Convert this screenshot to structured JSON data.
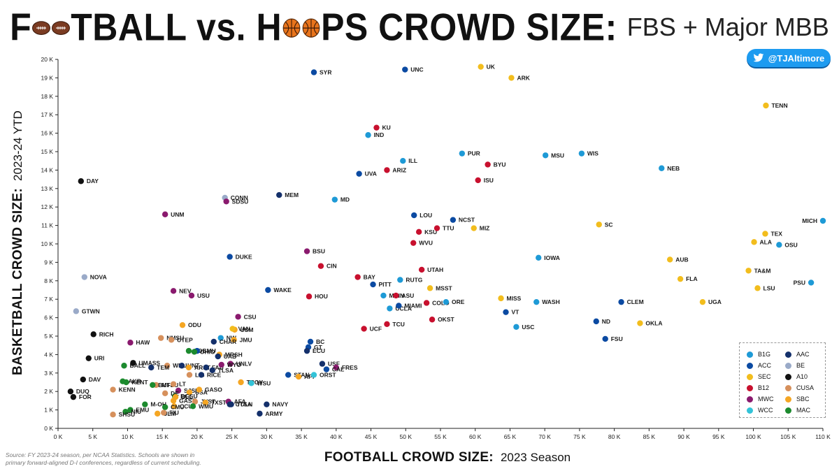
{
  "header": {
    "title_part1": "F",
    "title_part2": "TBALL vs. H",
    "title_part3": "PS CROWD SIZE:",
    "subtitle": "FBS + Major MBB"
  },
  "twitter_handle": "@TJAltimore",
  "source_note": "Source:  FY 2023-24 season, per NCAA Statistics.  Schools are shown in primary forward-aligned D-I conferences, regardless of current scheduling.",
  "chart_data": {
    "type": "scatter",
    "title": "FOOTBALL vs. HOOPS CROWD SIZE: FBS + Major MBB",
    "xlabel_bold": "FOOTBALL CROWD SIZE:",
    "xlabel_regular": "2023 Season",
    "ylabel_bold": "BASKETBALL CROWD SIZE:",
    "ylabel_regular": "2023-24 YTD",
    "xlim": [
      0,
      110000
    ],
    "ylim": [
      0,
      20000
    ],
    "x_ticks": [
      "0 K",
      "5 K",
      "10 K",
      "15 K",
      "20 K",
      "25 K",
      "30 K",
      "35 K",
      "40 K",
      "45 K",
      "50 K",
      "55 K",
      "60 K",
      "65 K",
      "70 K",
      "75 K",
      "80 K",
      "85 K",
      "90 K",
      "95 K",
      "100 K",
      "105 K",
      "110 K"
    ],
    "y_ticks": [
      "0 K",
      "1 K",
      "2 K",
      "3 K",
      "4 K",
      "5 K",
      "6 K",
      "7 K",
      "8 K",
      "9 K",
      "10 K",
      "11 K",
      "12 K",
      "13 K",
      "14 K",
      "15 K",
      "16 K",
      "17 K",
      "18 K",
      "19 K",
      "20 K"
    ],
    "grid": false,
    "legend_position": "bottom-right",
    "conferences": [
      {
        "key": "B1G",
        "color": "#1e9ad6"
      },
      {
        "key": "AAC",
        "color": "#14306b"
      },
      {
        "key": "ACC",
        "color": "#0b4aa2"
      },
      {
        "key": "BE",
        "color": "#9aaac8"
      },
      {
        "key": "SEC",
        "color": "#f2bd1d"
      },
      {
        "key": "A10",
        "color": "#111111"
      },
      {
        "key": "B12",
        "color": "#c8102e"
      },
      {
        "key": "CUSA",
        "color": "#d6905c"
      },
      {
        "key": "MWC",
        "color": "#8a1a6e"
      },
      {
        "key": "SBC",
        "color": "#f5a623"
      },
      {
        "key": "WCC",
        "color": "#33c3d8"
      },
      {
        "key": "MAC",
        "color": "#1c8a2e"
      }
    ],
    "points": [
      {
        "label": "SYR",
        "conf": "ACC",
        "x": 36800,
        "y": 19300
      },
      {
        "label": "UNC",
        "conf": "ACC",
        "x": 49900,
        "y": 19450
      },
      {
        "label": "UK",
        "conf": "SEC",
        "x": 60800,
        "y": 19600
      },
      {
        "label": "ARK",
        "conf": "SEC",
        "x": 65200,
        "y": 19000
      },
      {
        "label": "TENN",
        "conf": "SEC",
        "x": 101800,
        "y": 17500
      },
      {
        "label": "KU",
        "conf": "B12",
        "x": 45800,
        "y": 16300
      },
      {
        "label": "IND",
        "conf": "B1G",
        "x": 44600,
        "y": 15900
      },
      {
        "label": "PUR",
        "conf": "B1G",
        "x": 58100,
        "y": 14900
      },
      {
        "label": "MSU",
        "conf": "B1G",
        "x": 70100,
        "y": 14800
      },
      {
        "label": "WIS",
        "conf": "B1G",
        "x": 75300,
        "y": 14900
      },
      {
        "label": "ILL",
        "conf": "B1G",
        "x": 49600,
        "y": 14500
      },
      {
        "label": "BYU",
        "conf": "B12",
        "x": 61800,
        "y": 14300
      },
      {
        "label": "ARIZ",
        "conf": "B12",
        "x": 47300,
        "y": 14000
      },
      {
        "label": "UVA",
        "conf": "ACC",
        "x": 43300,
        "y": 13800
      },
      {
        "label": "NEB",
        "conf": "B1G",
        "x": 86800,
        "y": 14100
      },
      {
        "label": "ISU",
        "conf": "B12",
        "x": 60400,
        "y": 13450
      },
      {
        "label": "DAY",
        "conf": "A10",
        "x": 3300,
        "y": 13400
      },
      {
        "label": "CONN",
        "conf": "BE",
        "x": 24000,
        "y": 12500
      },
      {
        "label": "SDSU",
        "conf": "MWC",
        "x": 24200,
        "y": 12300
      },
      {
        "label": "MEM",
        "conf": "AAC",
        "x": 31800,
        "y": 12650
      },
      {
        "label": "MD",
        "conf": "B1G",
        "x": 39800,
        "y": 12400
      },
      {
        "label": "UNM",
        "conf": "MWC",
        "x": 15400,
        "y": 11600
      },
      {
        "label": "LOU",
        "conf": "ACC",
        "x": 51200,
        "y": 11550
      },
      {
        "label": "NCST",
        "conf": "ACC",
        "x": 56800,
        "y": 11300
      },
      {
        "label": "MICH",
        "conf": "B1G",
        "x": 110000,
        "y": 11250
      },
      {
        "label": "SC",
        "conf": "SEC",
        "x": 77800,
        "y": 11050
      },
      {
        "label": "KSU",
        "conf": "B12",
        "x": 51900,
        "y": 10650
      },
      {
        "label": "TTU",
        "conf": "B12",
        "x": 54500,
        "y": 10850
      },
      {
        "label": "MIZ",
        "conf": "SEC",
        "x": 59800,
        "y": 10850
      },
      {
        "label": "TEX",
        "conf": "SEC",
        "x": 101700,
        "y": 10550
      },
      {
        "label": "WVU",
        "conf": "B12",
        "x": 51100,
        "y": 10050
      },
      {
        "label": "ALA",
        "conf": "SEC",
        "x": 100100,
        "y": 10100
      },
      {
        "label": "OSU",
        "conf": "B1G",
        "x": 103700,
        "y": 9950
      },
      {
        "label": "BSU",
        "conf": "MWC",
        "x": 35800,
        "y": 9600
      },
      {
        "label": "DUKE",
        "conf": "ACC",
        "x": 24700,
        "y": 9300
      },
      {
        "label": "IOWA",
        "conf": "B1G",
        "x": 69100,
        "y": 9250
      },
      {
        "label": "AUB",
        "conf": "SEC",
        "x": 88000,
        "y": 9150
      },
      {
        "label": "CIN",
        "conf": "B12",
        "x": 37800,
        "y": 8800
      },
      {
        "label": "UTAH",
        "conf": "B12",
        "x": 52300,
        "y": 8600
      },
      {
        "label": "TA&M",
        "conf": "SEC",
        "x": 99300,
        "y": 8550
      },
      {
        "label": "NOVA",
        "conf": "BE",
        "x": 3800,
        "y": 8200
      },
      {
        "label": "BAY",
        "conf": "B12",
        "x": 43100,
        "y": 8200
      },
      {
        "label": "FLA",
        "conf": "SEC",
        "x": 89500,
        "y": 8100
      },
      {
        "label": "RUTG",
        "conf": "B1G",
        "x": 49200,
        "y": 8050
      },
      {
        "label": "PITT",
        "conf": "ACC",
        "x": 45300,
        "y": 7800
      },
      {
        "label": "MSST",
        "conf": "SEC",
        "x": 53500,
        "y": 7600
      },
      {
        "label": "LSU",
        "conf": "SEC",
        "x": 100600,
        "y": 7600
      },
      {
        "label": "PSU",
        "conf": "B1G",
        "x": 108300,
        "y": 7900
      },
      {
        "label": "WAKE",
        "conf": "ACC",
        "x": 30200,
        "y": 7500
      },
      {
        "label": "NEV",
        "conf": "MWC",
        "x": 16600,
        "y": 7450
      },
      {
        "label": "USU",
        "conf": "MWC",
        "x": 19200,
        "y": 7200
      },
      {
        "label": "HOU",
        "conf": "B12",
        "x": 36100,
        "y": 7150
      },
      {
        "label": "MINN",
        "conf": "B1G",
        "x": 46800,
        "y": 7200
      },
      {
        "label": "ASU",
        "conf": "B12",
        "x": 48600,
        "y": 7200
      },
      {
        "label": "COLO",
        "conf": "B12",
        "x": 53000,
        "y": 6800
      },
      {
        "label": "ORE",
        "conf": "B1G",
        "x": 55800,
        "y": 6850
      },
      {
        "label": "MISS",
        "conf": "SEC",
        "x": 63700,
        "y": 7050
      },
      {
        "label": "WASH",
        "conf": "B1G",
        "x": 68800,
        "y": 6850
      },
      {
        "label": "CLEM",
        "conf": "ACC",
        "x": 81000,
        "y": 6850
      },
      {
        "label": "UGA",
        "conf": "SEC",
        "x": 92700,
        "y": 6850
      },
      {
        "label": "GTWN",
        "conf": "BE",
        "x": 2600,
        "y": 6350
      },
      {
        "label": "UCLA",
        "conf": "B1G",
        "x": 47700,
        "y": 6500
      },
      {
        "label": "MIAMI",
        "conf": "ACC",
        "x": 49000,
        "y": 6650
      },
      {
        "label": "VT",
        "conf": "ACC",
        "x": 64400,
        "y": 6300
      },
      {
        "label": "CSU",
        "conf": "MWC",
        "x": 25900,
        "y": 6050
      },
      {
        "label": "OKST",
        "conf": "B12",
        "x": 53800,
        "y": 5900
      },
      {
        "label": "ND",
        "conf": "ACC",
        "x": 77400,
        "y": 5800
      },
      {
        "label": "OKLA",
        "conf": "SEC",
        "x": 83700,
        "y": 5700
      },
      {
        "label": "ODU",
        "conf": "SBC",
        "x": 17900,
        "y": 5600
      },
      {
        "label": "TCU",
        "conf": "B12",
        "x": 47300,
        "y": 5650
      },
      {
        "label": "USC",
        "conf": "B1G",
        "x": 65900,
        "y": 5500
      },
      {
        "label": "UCF",
        "conf": "B12",
        "x": 44000,
        "y": 5400
      },
      {
        "label": "USM",
        "conf": "SBC",
        "x": 25400,
        "y": 5350
      },
      {
        "label": "VAN",
        "conf": "SEC",
        "x": 25100,
        "y": 5400
      },
      {
        "label": "RICH",
        "conf": "A10",
        "x": 5100,
        "y": 5100
      },
      {
        "label": "NMSU",
        "conf": "CUSA",
        "x": 14800,
        "y": 4900
      },
      {
        "label": "UTEP",
        "conf": "CUSA",
        "x": 16300,
        "y": 4800
      },
      {
        "label": "NW",
        "conf": "B1G",
        "x": 23400,
        "y": 4900
      },
      {
        "label": "JMU",
        "conf": "SBC",
        "x": 25300,
        "y": 4800
      },
      {
        "label": "FSU",
        "conf": "ACC",
        "x": 78700,
        "y": 4850
      },
      {
        "label": "CHAR",
        "conf": "AAC",
        "x": 22400,
        "y": 4700
      },
      {
        "label": "HAW",
        "conf": "MWC",
        "x": 10400,
        "y": 4650
      },
      {
        "label": "BC",
        "conf": "ACC",
        "x": 36300,
        "y": 4700
      },
      {
        "label": "TOL",
        "conf": "MAC",
        "x": 18800,
        "y": 4200
      },
      {
        "label": "SMU",
        "conf": "ACC",
        "x": 20000,
        "y": 4200
      },
      {
        "label": "GT",
        "conf": "ACC",
        "x": 36000,
        "y": 4400
      },
      {
        "label": "OHIO",
        "conf": "MAC",
        "x": 19600,
        "y": 4150
      },
      {
        "label": "MRSH",
        "conf": "SBC",
        "x": 23200,
        "y": 4000
      },
      {
        "label": "ECU",
        "conf": "AAC",
        "x": 35800,
        "y": 4200
      },
      {
        "label": "UAB",
        "conf": "AAC",
        "x": 23000,
        "y": 3900
      },
      {
        "label": "URI",
        "conf": "A10",
        "x": 4400,
        "y": 3800
      },
      {
        "label": "BALL",
        "conf": "MAC",
        "x": 9500,
        "y": 3400
      },
      {
        "label": "UMASS",
        "conf": "A10",
        "x": 10800,
        "y": 3550
      },
      {
        "label": "WKU",
        "conf": "CUSA",
        "x": 15700,
        "y": 3400
      },
      {
        "label": "UNT",
        "conf": "AAC",
        "x": 17800,
        "y": 3400
      },
      {
        "label": "ARST",
        "conf": "SBC",
        "x": 18800,
        "y": 3300
      },
      {
        "label": "FAU",
        "conf": "AAC",
        "x": 21300,
        "y": 3300
      },
      {
        "label": "UNLV",
        "conf": "MWC",
        "x": 24800,
        "y": 3500
      },
      {
        "label": "USF",
        "conf": "AAC",
        "x": 38000,
        "y": 3500
      },
      {
        "label": "FRES",
        "conf": "MWC",
        "x": 40000,
        "y": 3300
      },
      {
        "label": "TEM",
        "conf": "AAC",
        "x": 13400,
        "y": 3300
      },
      {
        "label": "WYO",
        "conf": "MWC",
        "x": 23500,
        "y": 3450
      },
      {
        "label": "TLSA",
        "conf": "AAC",
        "x": 22200,
        "y": 3150
      },
      {
        "label": "STAN",
        "conf": "ACC",
        "x": 33100,
        "y": 2900
      },
      {
        "label": "CAL",
        "conf": "ACC",
        "x": 38600,
        "y": 3200
      },
      {
        "label": "AKR",
        "conf": "MAC",
        "x": 9300,
        "y": 2550
      },
      {
        "label": "DAV",
        "conf": "A10",
        "x": 3600,
        "y": 2650
      },
      {
        "label": "MTSU",
        "conf": "CUSA",
        "x": 14100,
        "y": 2350
      },
      {
        "label": "LIB",
        "conf": "CUSA",
        "x": 18900,
        "y": 2900
      },
      {
        "label": "RICE",
        "conf": "AAC",
        "x": 20600,
        "y": 2900
      },
      {
        "label": "TROY",
        "conf": "SBC",
        "x": 26300,
        "y": 2500
      },
      {
        "label": "WSU",
        "conf": "WCC",
        "x": 27800,
        "y": 2450
      },
      {
        "label": "APP",
        "conf": "SBC",
        "x": 34600,
        "y": 2800
      },
      {
        "label": "ORST",
        "conf": "WCC",
        "x": 36800,
        "y": 2900
      },
      {
        "label": "DUQ",
        "conf": "A10",
        "x": 1800,
        "y": 2000
      },
      {
        "label": "KENN",
        "conf": "CUSA",
        "x": 7900,
        "y": 2100
      },
      {
        "label": "KENT",
        "conf": "MAC",
        "x": 9800,
        "y": 2500
      },
      {
        "label": "BUFF",
        "conf": "MAC",
        "x": 13600,
        "y": 2350
      },
      {
        "label": "LT",
        "conf": "CUSA",
        "x": 16600,
        "y": 2400
      },
      {
        "label": "SJSU",
        "conf": "MWC",
        "x": 17300,
        "y": 2050
      },
      {
        "label": "USA",
        "conf": "SBC",
        "x": 18900,
        "y": 1950
      },
      {
        "label": "GASO",
        "conf": "SBC",
        "x": 20300,
        "y": 2100
      },
      {
        "label": "BGSU",
        "conf": "MAC",
        "x": 16800,
        "y": 1750
      },
      {
        "label": "DE",
        "conf": "CUSA",
        "x": 15400,
        "y": 1900
      },
      {
        "label": "GAST",
        "conf": "SBC",
        "x": 16600,
        "y": 1500
      },
      {
        "label": "FOR",
        "conf": "A10",
        "x": 2200,
        "y": 1700
      },
      {
        "label": "JVST",
        "conf": "CUSA",
        "x": 19700,
        "y": 1450
      },
      {
        "label": "TXST",
        "conf": "SBC",
        "x": 21200,
        "y": 1400
      },
      {
        "label": "AFA",
        "conf": "MWC",
        "x": 24500,
        "y": 1450
      },
      {
        "label": "UTSA",
        "conf": "AAC",
        "x": 24700,
        "y": 1300
      },
      {
        "label": "NAVY",
        "conf": "AAC",
        "x": 30000,
        "y": 1300
      },
      {
        "label": "M-OH",
        "conf": "MAC",
        "x": 12500,
        "y": 1300
      },
      {
        "label": "CCU",
        "conf": "SBC",
        "x": 16700,
        "y": 1200
      },
      {
        "label": "WMU",
        "conf": "MAC",
        "x": 19400,
        "y": 1200
      },
      {
        "label": "TULN",
        "conf": "AAC",
        "x": 24900,
        "y": 1300
      },
      {
        "label": "EMU",
        "conf": "MAC",
        "x": 10400,
        "y": 1000
      },
      {
        "label": "NIU",
        "conf": "MAC",
        "x": 9700,
        "y": 900
      },
      {
        "label": "CMU",
        "conf": "MAC",
        "x": 15400,
        "y": 1150
      },
      {
        "label": "ULL",
        "conf": "SBC",
        "x": 16900,
        "y": 1700
      },
      {
        "label": "ARMY",
        "conf": "AAC",
        "x": 29000,
        "y": 800
      },
      {
        "label": "SHSU",
        "conf": "CUSA",
        "x": 7900,
        "y": 750
      },
      {
        "label": "ULM",
        "conf": "SBC",
        "x": 14300,
        "y": 800
      },
      {
        "label": "FIU",
        "conf": "CUSA",
        "x": 15200,
        "y": 850
      }
    ]
  }
}
